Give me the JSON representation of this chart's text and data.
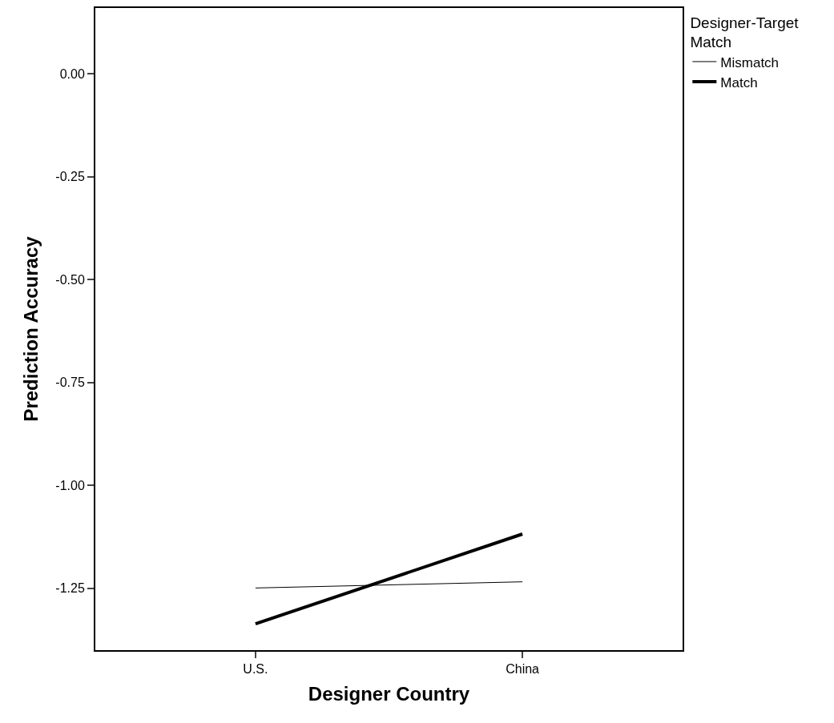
{
  "chart_data": {
    "type": "line",
    "xlabel": "Designer Country",
    "ylabel": "Prediction Accuracy",
    "legend_title": "Designer-Target Match",
    "categories": [
      "U.S.",
      "China"
    ],
    "series": [
      {
        "name": "Mismatch",
        "color": "#000000",
        "values": [
          -1.249,
          -1.234
        ]
      },
      {
        "name": "Match",
        "color": "#000000",
        "values": [
          -1.336,
          -1.118
        ]
      }
    ],
    "ylim": [
      -1.4,
      0.16
    ],
    "yticks": [
      {
        "value": 0,
        "label": "0.00"
      },
      {
        "value": -0.25,
        "label": "-0.25"
      },
      {
        "value": -0.5,
        "label": "-0.50"
      },
      {
        "value": -0.75,
        "label": "-0.75"
      },
      {
        "value": -1.0,
        "label": "-1.00"
      },
      {
        "value": -1.25,
        "label": "-1.25"
      }
    ],
    "legend": "top right",
    "marker": "none",
    "line_style": "solid"
  }
}
